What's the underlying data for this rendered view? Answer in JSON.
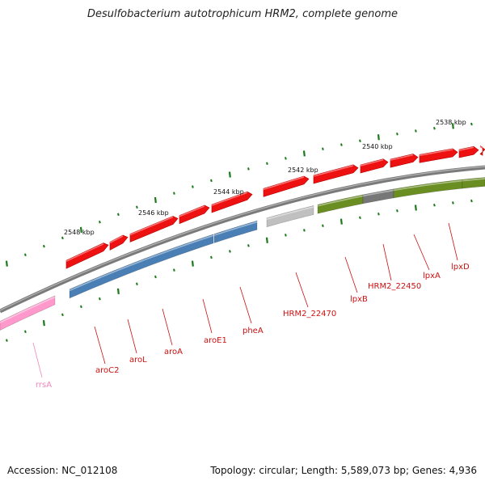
{
  "title": "Desulfobacterium autotrophicum HRM2, complete genome",
  "footer": {
    "accession": "Accession: NC_012108",
    "summary": "Topology: circular; Length: 5,589,073 bp; Genes: 4,936"
  },
  "colors": {
    "backbone": "#808080",
    "cds": "#ee1111",
    "gene_blue": "#4a7fb5",
    "gene_green": "#6b8e23",
    "gene_gray": "#777777",
    "gene_lightgray": "#c0c0c0",
    "rrna": "#ff99cc",
    "tick": "#1a7a1a",
    "label": "#cc1111",
    "label_rrna": "#ee88bb"
  },
  "scale_labels": [
    {
      "text": "2538 kbp",
      "kbp": 2538
    },
    {
      "text": "2540 kbp",
      "kbp": 2540
    },
    {
      "text": "2542 kbp",
      "kbp": 2542
    },
    {
      "text": "2544 kbp",
      "kbp": 2544
    },
    {
      "text": "2546 kbp",
      "kbp": 2546
    },
    {
      "text": "2548 kbp",
      "kbp": 2548
    }
  ],
  "genes": [
    {
      "name": "lpxD",
      "color": "label"
    },
    {
      "name": "lpxA",
      "color": "label"
    },
    {
      "name": "HRM2_22450",
      "color": "label"
    },
    {
      "name": "lpxB",
      "color": "label"
    },
    {
      "name": "HRM2_22470",
      "color": "label"
    },
    {
      "name": "pheA",
      "color": "label"
    },
    {
      "name": "aroE1",
      "color": "label"
    },
    {
      "name": "aroA",
      "color": "label"
    },
    {
      "name": "aroL",
      "color": "label"
    },
    {
      "name": "aroC2",
      "color": "label"
    },
    {
      "name": "rrsA",
      "color": "label_rrna"
    }
  ]
}
